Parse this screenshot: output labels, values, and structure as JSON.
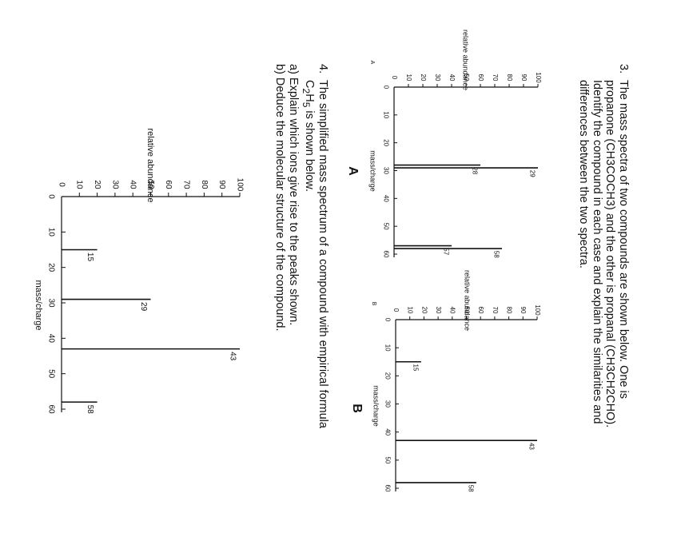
{
  "question3": {
    "number": "3.",
    "lines": [
      "The mass spectra of two compounds are shown below. One is",
      "propanone (CH3COCH3) and the other is propanal (CH3CH2CHO).",
      "Identify the compound in each case and explain the similarities and",
      "differences between the two spectra."
    ]
  },
  "question4": {
    "number": "4.",
    "line1": "The simplified mass spectrum of a compound with empirical formula",
    "line2_pre": "C",
    "line2_sub1": "2",
    "line2_mid": "H",
    "line2_sub2": "5",
    "line2_post": " is shown below.",
    "part_a": "a) Explain which ions give rise to the peaks shown.",
    "part_b": "b) Deduce the molecular structure of the compound."
  },
  "chart_data": [
    {
      "type": "bar",
      "corner_label": "A",
      "caption": "A",
      "xlabel": "mass/charge",
      "ylabel": "relative abundance",
      "xlim": [
        0,
        60
      ],
      "ylim": [
        0,
        100
      ],
      "xticks": [
        0,
        10,
        20,
        30,
        40,
        50,
        60
      ],
      "yticks": [
        10,
        20,
        30,
        40,
        50,
        60,
        70,
        80,
        90,
        100
      ],
      "peaks": [
        {
          "x": 28,
          "y": 60,
          "label": "28"
        },
        {
          "x": 29,
          "y": 100,
          "label": "29"
        },
        {
          "x": 57,
          "y": 40,
          "label": "57"
        },
        {
          "x": 58,
          "y": 75,
          "label": "58"
        }
      ]
    },
    {
      "type": "bar",
      "corner_label": "B",
      "caption": "B",
      "xlabel": "mass/charge",
      "ylabel": "relative abundance",
      "xlim": [
        0,
        60
      ],
      "ylim": [
        0,
        100
      ],
      "xticks": [
        0,
        10,
        20,
        30,
        40,
        50,
        60
      ],
      "yticks": [
        10,
        20,
        30,
        40,
        50,
        60,
        70,
        80,
        90,
        100
      ],
      "peaks": [
        {
          "x": 15,
          "y": 18,
          "label": "15"
        },
        {
          "x": 43,
          "y": 100,
          "label": "43"
        },
        {
          "x": 58,
          "y": 57,
          "label": "58"
        }
      ]
    },
    {
      "type": "bar",
      "corner_label": "",
      "caption": "",
      "xlabel": "mass/charge",
      "ylabel": "relative abundance",
      "xlim": [
        0,
        60
      ],
      "ylim": [
        0,
        100
      ],
      "xticks": [
        0,
        10,
        20,
        30,
        40,
        50,
        60
      ],
      "yticks": [
        10,
        20,
        30,
        40,
        50,
        60,
        70,
        80,
        90,
        100
      ],
      "peaks": [
        {
          "x": 15,
          "y": 20,
          "label": "15"
        },
        {
          "x": 29,
          "y": 50,
          "label": "29"
        },
        {
          "x": 43,
          "y": 100,
          "label": "43"
        },
        {
          "x": 58,
          "y": 20,
          "label": "58"
        }
      ]
    }
  ]
}
